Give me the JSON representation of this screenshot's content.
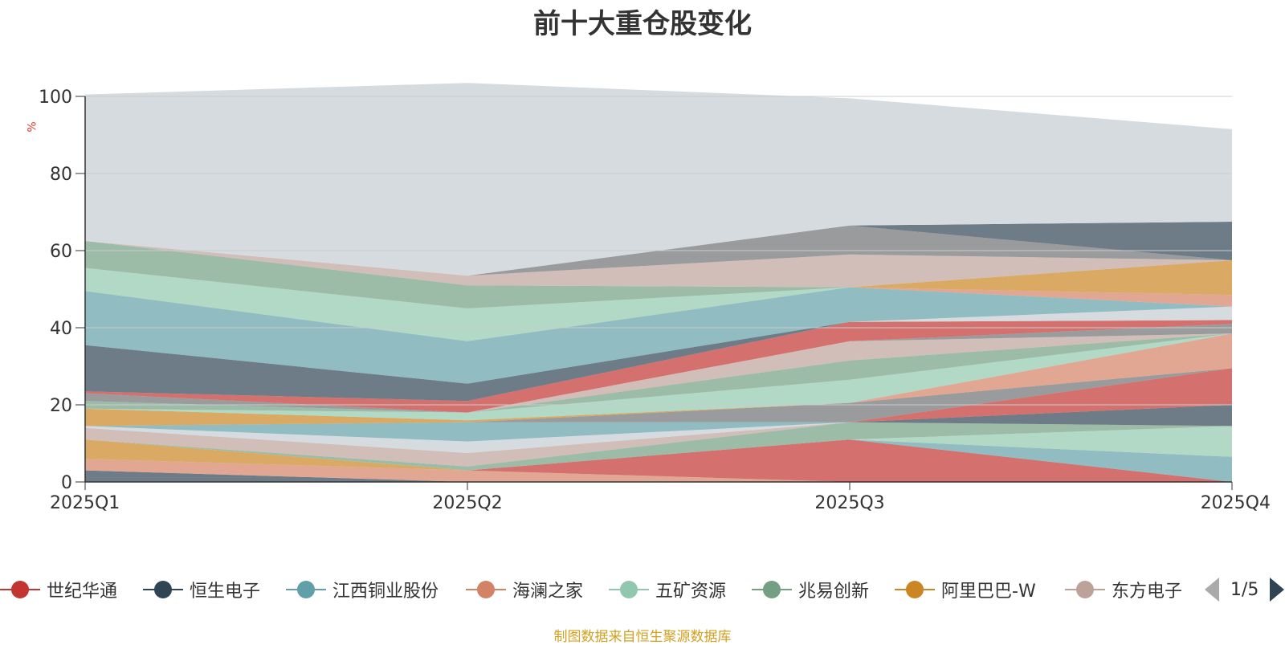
{
  "title": "前十大重仓股变化",
  "unit_label": "%",
  "source_note": "制图数据来自恒生聚源数据库",
  "pager": {
    "text": "1/5"
  },
  "legend": [
    {
      "name": "世纪华通",
      "color": "#c23531"
    },
    {
      "name": "恒生电子",
      "color": "#2f4554"
    },
    {
      "name": "江西铜业股份",
      "color": "#61a0a8"
    },
    {
      "name": "海澜之家",
      "color": "#d48265"
    },
    {
      "name": "五矿资源",
      "color": "#91c7ae"
    },
    {
      "name": "兆易创新",
      "color": "#749f83"
    },
    {
      "name": "阿里巴巴-W",
      "color": "#ca8622"
    },
    {
      "name": "东方电子",
      "color": "#bda29a"
    }
  ],
  "chart_data": {
    "type": "area",
    "stacked": true,
    "categories": [
      "2025Q1",
      "2025Q2",
      "2025Q3",
      "2025Q4"
    ],
    "ylim": [
      0,
      100
    ],
    "yticks": [
      0,
      20,
      40,
      60,
      80,
      100
    ],
    "grid": true,
    "legend_position": "bottom",
    "layers": [
      {
        "color": "#2f4554",
        "values": [
          3.0,
          0.0,
          0.0,
          0.0
        ]
      },
      {
        "color": "#d48265",
        "values": [
          3.0,
          3.0,
          0.0,
          0.0
        ]
      },
      {
        "color": "#ca8622",
        "values": [
          5.0,
          0.0,
          0.0,
          0.0
        ]
      },
      {
        "color": "#c23531",
        "values": [
          0.0,
          0.0,
          11.0,
          0.0
        ]
      },
      {
        "color": "#61a0a8",
        "values": [
          0.0,
          0.0,
          0.0,
          6.5
        ]
      },
      {
        "color": "#91c7ae",
        "values": [
          0.0,
          0.0,
          0.0,
          8.0
        ]
      },
      {
        "color": "#749f83",
        "values": [
          0.0,
          1.0,
          4.5,
          0.0
        ]
      },
      {
        "color": "#bda29a",
        "values": [
          3.0,
          3.5,
          0.0,
          0.0
        ]
      },
      {
        "color": "#2f4554",
        "values": [
          0.0,
          0.0,
          0.0,
          5.5
        ]
      },
      {
        "color": "#c23531",
        "values": [
          0.0,
          0.0,
          0.0,
          9.5
        ]
      },
      {
        "color": "#c4ccd3",
        "values": [
          0.5,
          3.0,
          0.0,
          0.0
        ]
      },
      {
        "color": "#61a0a8",
        "values": [
          0.0,
          5.0,
          0.0,
          0.0
        ]
      },
      {
        "color": "#6e7074",
        "values": [
          0.0,
          0.0,
          5.0,
          0.0
        ]
      },
      {
        "color": "#ca8622",
        "values": [
          4.5,
          0.5,
          0.0,
          0.0
        ]
      },
      {
        "color": "#d48265",
        "values": [
          0.0,
          0.0,
          0.0,
          9.0
        ]
      },
      {
        "color": "#91c7ae",
        "values": [
          0.0,
          2.0,
          6.0,
          0.0
        ]
      },
      {
        "color": "#749f83",
        "values": [
          2.0,
          0.0,
          5.0,
          0.0
        ]
      },
      {
        "color": "#bda29a",
        "values": [
          0.0,
          0.0,
          5.0,
          0.0
        ]
      },
      {
        "color": "#6e7074",
        "values": [
          2.0,
          0.0,
          0.0,
          2.5
        ]
      },
      {
        "color": "#c23531",
        "values": [
          0.5,
          3.0,
          5.0,
          1.0
        ]
      },
      {
        "color": "#c4ccd3",
        "values": [
          0.0,
          0.0,
          0.0,
          3.5
        ]
      },
      {
        "color": "#2f4554",
        "values": [
          12.0,
          4.5,
          0.0,
          0.0
        ]
      },
      {
        "color": "#61a0a8",
        "values": [
          14.0,
          11.0,
          9.0,
          0.0
        ]
      },
      {
        "color": "#d48265",
        "values": [
          0.0,
          0.0,
          0.0,
          3.0
        ]
      },
      {
        "color": "#ca8622",
        "values": [
          0.0,
          0.0,
          0.0,
          9.0
        ]
      },
      {
        "color": "#91c7ae",
        "values": [
          6.0,
          8.5,
          0.0,
          0.0
        ]
      },
      {
        "color": "#749f83",
        "values": [
          7.0,
          6.0,
          0.0,
          0.0
        ]
      },
      {
        "color": "#bda29a",
        "values": [
          0.0,
          2.5,
          8.5,
          0.0
        ]
      },
      {
        "color": "#6e7074",
        "values": [
          0.0,
          0.0,
          7.5,
          0.0
        ]
      },
      {
        "color": "#2f4554",
        "values": [
          0.0,
          0.0,
          0.0,
          10.0
        ]
      },
      {
        "color": "#c4ccd3",
        "values": [
          38.0,
          50.0,
          33.0,
          24.0
        ]
      }
    ]
  }
}
